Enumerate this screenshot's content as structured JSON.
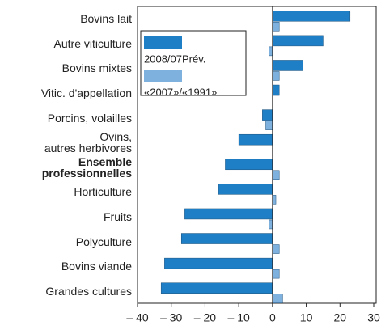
{
  "chart_data": {
    "type": "bar",
    "orientation": "horizontal",
    "categories": [
      "Bovins lait",
      "Autre viticulture",
      "Bovins mixtes",
      "Vitic. d'appellation",
      "Porcins, volailles",
      "Ovins,\nautres herbivores",
      "Ensemble\nprofessionnelles",
      "Horticulture",
      "Fruits",
      "Polyculture",
      "Bovins viande",
      "Grandes cultures"
    ],
    "highlight_index": 6,
    "series": [
      {
        "name": "2008/07Prév.",
        "color": "#1f7fc6",
        "values": [
          23,
          15,
          9,
          2,
          -3,
          -10,
          -14,
          -16,
          -26,
          -27,
          -32,
          -33
        ]
      },
      {
        "name": "«2007»/«1991»",
        "color": "#7fb1df",
        "values": [
          2,
          -1,
          2,
          null,
          -2,
          null,
          2,
          1,
          -1,
          2,
          2,
          3
        ]
      }
    ],
    "xlim": [
      -40,
      30
    ],
    "xticks": [
      {
        "value": -40,
        "label": "– 40"
      },
      {
        "value": -30,
        "label": "– 30"
      },
      {
        "value": -20,
        "label": "– 20"
      },
      {
        "value": -10,
        "label": "– 10"
      },
      0,
      10,
      20,
      30
    ]
  }
}
